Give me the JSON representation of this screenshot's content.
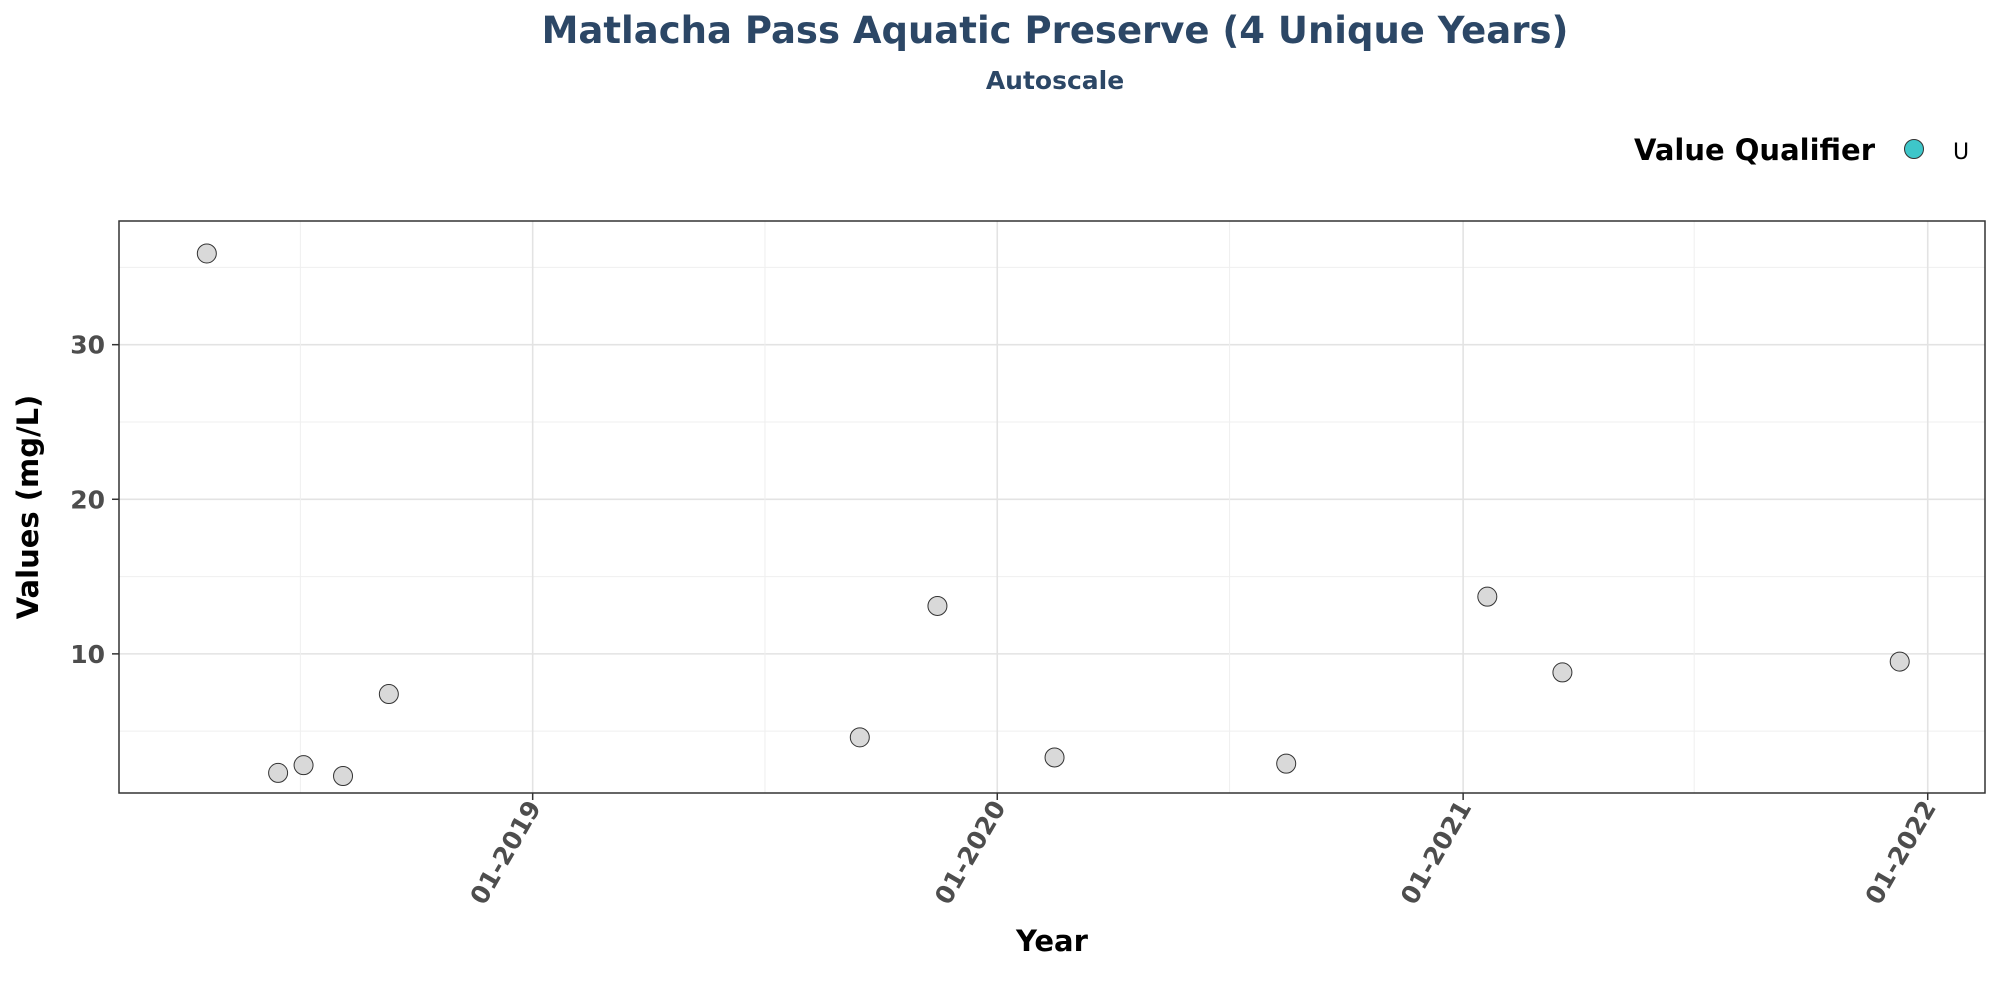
{
  "chart_data": {
    "type": "scatter",
    "title": "Matlacha Pass Aquatic Preserve (4 Unique Years)",
    "subtitle": "Autoscale",
    "xlabel": "Year",
    "ylabel": "Values (mg/L)",
    "x_tick_labels": [
      "01-2019",
      "01-2020",
      "01-2021",
      "01-2022"
    ],
    "x_tick_values": [
      "2019-01-01",
      "2020-01-01",
      "2021-01-01",
      "2022-01-01"
    ],
    "y_ticks": [
      10,
      20,
      30
    ],
    "xlim": [
      "2018-02-10",
      "2022-02-15"
    ],
    "ylim": [
      1,
      38
    ],
    "grid": true,
    "legend": {
      "title": "Value Qualifier",
      "position": "top-right",
      "items": [
        {
          "label": "U",
          "color": "#3ec6c9"
        }
      ]
    },
    "point_color": "#d9d9d9",
    "points": [
      {
        "x": "2018-04-20",
        "y": 35.9
      },
      {
        "x": "2018-06-15",
        "y": 2.3
      },
      {
        "x": "2018-07-05",
        "y": 2.8
      },
      {
        "x": "2018-08-05",
        "y": 2.1
      },
      {
        "x": "2018-09-10",
        "y": 7.4
      },
      {
        "x": "2019-09-15",
        "y": 4.6
      },
      {
        "x": "2019-11-15",
        "y": 13.1
      },
      {
        "x": "2020-02-15",
        "y": 3.3
      },
      {
        "x": "2020-08-15",
        "y": 2.9
      },
      {
        "x": "2021-01-20",
        "y": 13.7
      },
      {
        "x": "2021-03-20",
        "y": 8.8
      },
      {
        "x": "2021-12-10",
        "y": 9.5
      }
    ]
  }
}
